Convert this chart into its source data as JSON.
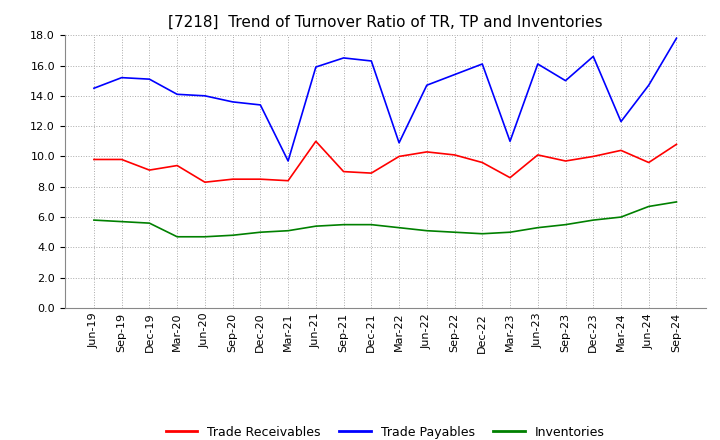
{
  "title": "[7218]  Trend of Turnover Ratio of TR, TP and Inventories",
  "x_labels": [
    "Jun-19",
    "Sep-19",
    "Dec-19",
    "Mar-20",
    "Jun-20",
    "Sep-20",
    "Dec-20",
    "Mar-21",
    "Jun-21",
    "Sep-21",
    "Dec-21",
    "Mar-22",
    "Jun-22",
    "Sep-22",
    "Dec-22",
    "Mar-23",
    "Jun-23",
    "Sep-23",
    "Dec-23",
    "Mar-24",
    "Jun-24",
    "Sep-24"
  ],
  "trade_receivables": [
    9.8,
    9.8,
    9.1,
    9.4,
    8.3,
    8.5,
    8.5,
    8.4,
    11.0,
    9.0,
    8.9,
    10.0,
    10.3,
    10.1,
    9.6,
    8.6,
    10.1,
    9.7,
    10.0,
    10.4,
    9.6,
    10.8
  ],
  "trade_payables": [
    14.5,
    15.2,
    15.1,
    14.1,
    14.0,
    13.6,
    13.4,
    9.7,
    15.9,
    16.5,
    16.3,
    10.9,
    14.7,
    15.4,
    16.1,
    11.0,
    16.1,
    15.0,
    16.6,
    12.3,
    14.7,
    17.8
  ],
  "inventories": [
    5.8,
    5.7,
    5.6,
    4.7,
    4.7,
    4.8,
    5.0,
    5.1,
    5.4,
    5.5,
    5.5,
    5.3,
    5.1,
    5.0,
    4.9,
    5.0,
    5.3,
    5.5,
    5.8,
    6.0,
    6.7,
    7.0
  ],
  "tr_color": "#ff0000",
  "tp_color": "#0000ff",
  "inv_color": "#008000",
  "legend_labels": [
    "Trade Receivables",
    "Trade Payables",
    "Inventories"
  ],
  "ylim": [
    0.0,
    18.0
  ],
  "yticks": [
    0.0,
    2.0,
    4.0,
    6.0,
    8.0,
    10.0,
    12.0,
    14.0,
    16.0,
    18.0
  ],
  "title_fontsize": 11,
  "tick_fontsize": 8,
  "legend_fontsize": 9,
  "linewidth": 1.2
}
